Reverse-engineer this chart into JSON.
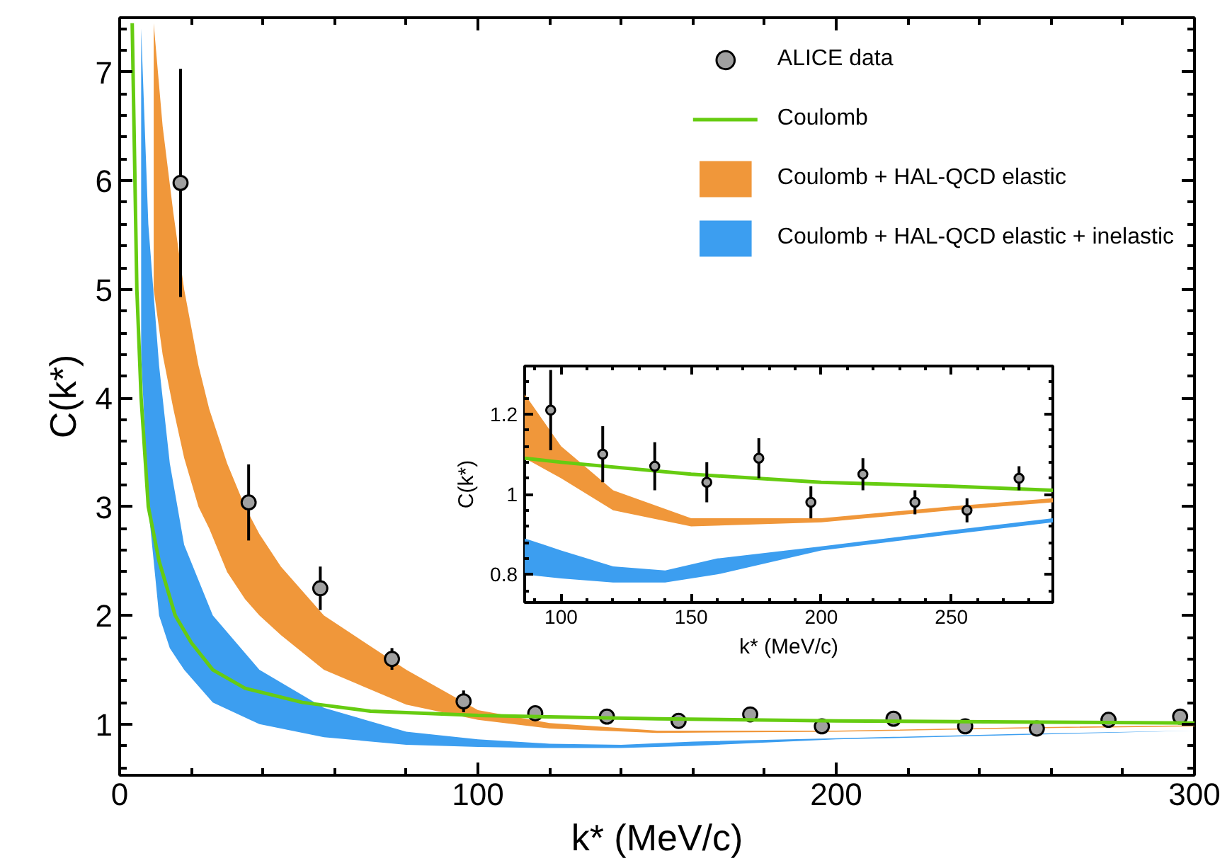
{
  "chart_data": [
    {
      "type": "scatter",
      "xlabel": "k* (MeV/c)",
      "ylabel": "C(k*)",
      "xlim": [
        0,
        300
      ],
      "ylim": [
        0.53,
        7.5
      ],
      "xticks": [
        0,
        100,
        200,
        300
      ],
      "yticks": [
        1,
        2,
        3,
        4,
        5,
        6,
        7
      ],
      "grid": false,
      "legend": "top right",
      "series": [
        {
          "name": "ALICE data",
          "color": "#a0a0a0",
          "marker": "circle",
          "x": [
            17,
            36,
            56,
            76,
            96,
            116,
            136,
            156,
            176,
            196,
            216,
            236,
            256,
            276,
            296
          ],
          "values": [
            5.98,
            3.04,
            2.25,
            1.6,
            1.21,
            1.1,
            1.07,
            1.03,
            1.09,
            0.98,
            1.05,
            0.98,
            0.96,
            1.04,
            1.07
          ],
          "errors": [
            1.05,
            0.35,
            0.2,
            0.1,
            0.1,
            null,
            null,
            null,
            null,
            null,
            null,
            null,
            null,
            null,
            null
          ]
        },
        {
          "name": "Coulomb",
          "type": "line",
          "color": "#66cc11",
          "x": [
            3.5,
            4.8,
            6,
            8,
            11,
            15.5,
            20,
            26,
            35,
            51,
            70,
            100,
            150,
            200,
            250,
            300
          ],
          "values": [
            7.45,
            5.0,
            4.0,
            3.0,
            2.5,
            2.0,
            1.75,
            1.5,
            1.33,
            1.2,
            1.12,
            1.08,
            1.05,
            1.03,
            1.02,
            1.01
          ]
        },
        {
          "name": "Coulomb + HAL-QCD elastic",
          "type": "line",
          "color": "#f0973a",
          "x": [
            9.5,
            12,
            15,
            18,
            22,
            25,
            30,
            35,
            39,
            45,
            57,
            80,
            100,
            120,
            150,
            200,
            250,
            300
          ],
          "values": [
            null,
            null,
            null,
            null,
            null,
            null,
            null,
            null,
            null,
            null,
            null,
            null,
            null,
            null,
            null,
            null,
            null,
            null
          ],
          "lower": [
            5.0,
            4.4,
            3.9,
            3.45,
            3.0,
            2.8,
            2.4,
            2.15,
            2.0,
            1.82,
            1.5,
            1.18,
            1.04,
            0.96,
            0.92,
            0.93,
            0.96,
            0.98
          ],
          "upper": [
            7.45,
            6.5,
            5.7,
            5.0,
            4.3,
            3.9,
            3.4,
            3.0,
            2.75,
            2.45,
            2.0,
            1.5,
            1.13,
            1.01,
            0.94,
            0.94,
            0.97,
            0.99
          ]
        },
        {
          "name": "Coulomb + HAL-QCD elastic + inelastic",
          "type": "line",
          "color": "#3c9ef0",
          "x": [
            6,
            8,
            11,
            14,
            18,
            26,
            39,
            57,
            80,
            100,
            120,
            140,
            160,
            200,
            250,
            300
          ],
          "values": [
            null,
            null,
            null,
            null,
            null,
            null,
            null,
            null,
            null,
            null,
            null,
            null,
            null,
            null,
            null,
            null
          ],
          "lower": [
            4.4,
            3.0,
            2.0,
            1.7,
            1.5,
            1.2,
            1.0,
            0.88,
            0.81,
            0.79,
            0.78,
            0.78,
            0.8,
            0.86,
            0.9,
            0.94
          ],
          "upper": [
            7.4,
            5.6,
            4.3,
            3.4,
            2.65,
            2.0,
            1.5,
            1.15,
            0.93,
            0.86,
            0.82,
            0.81,
            0.84,
            0.87,
            0.91,
            0.94
          ]
        }
      ]
    },
    {
      "type": "scatter",
      "xlabel": "k* (MeV/c)",
      "ylabel": "C(k*)",
      "xlim": [
        86,
        289
      ],
      "ylim": [
        0.73,
        1.32
      ],
      "xticks": [
        100,
        150,
        200,
        250
      ],
      "yticks": [
        0.8,
        1,
        1.2
      ],
      "grid": false,
      "series": [
        {
          "type": "line",
          "color": "#f0973a",
          "x": [
            86,
            100,
            120,
            150,
            200,
            250,
            289
          ],
          "values": [
            null,
            null,
            null,
            null,
            null,
            null,
            null
          ],
          "lower": [
            1.09,
            1.04,
            0.96,
            0.92,
            0.93,
            0.96,
            0.98
          ],
          "upper": [
            1.25,
            1.12,
            1.01,
            0.94,
            0.94,
            0.97,
            0.99
          ]
        },
        {
          "type": "line",
          "color": "#3c9ef0",
          "x": [
            86,
            100,
            120,
            140,
            160,
            200,
            250,
            289
          ],
          "values": [
            null,
            null,
            null,
            null,
            null,
            null,
            null,
            null
          ],
          "lower": [
            0.8,
            0.79,
            0.78,
            0.78,
            0.8,
            0.86,
            0.9,
            0.93
          ],
          "upper": [
            0.89,
            0.86,
            0.82,
            0.81,
            0.84,
            0.87,
            0.91,
            0.94
          ]
        },
        {
          "type": "line",
          "color": "#66cc11",
          "x": [
            86,
            100,
            150,
            200,
            250,
            289
          ],
          "values": [
            1.09,
            1.08,
            1.05,
            1.03,
            1.02,
            1.01
          ]
        },
        {
          "color": "#a0a0a0",
          "marker": "circle",
          "x": [
            96,
            116,
            136,
            156,
            176,
            196,
            216,
            236,
            256,
            276
          ],
          "values": [
            1.21,
            1.1,
            1.07,
            1.03,
            1.09,
            0.98,
            1.05,
            0.98,
            0.96,
            1.04
          ],
          "errors": [
            0.1,
            0.07,
            0.06,
            0.05,
            0.05,
            0.04,
            0.04,
            0.03,
            0.03,
            0.03
          ]
        }
      ]
    }
  ]
}
